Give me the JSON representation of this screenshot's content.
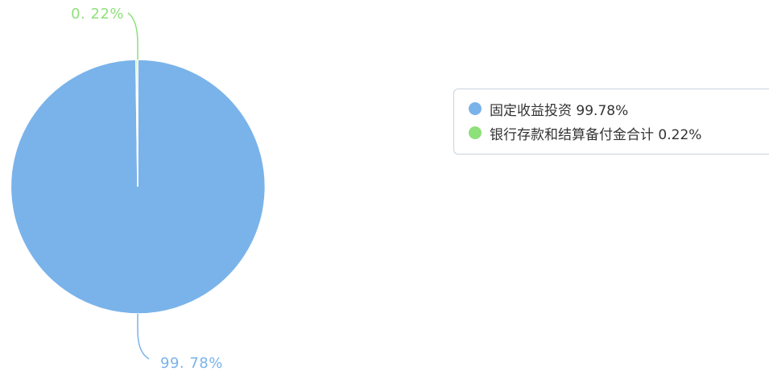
{
  "chart_data": {
    "type": "pie",
    "slices": [
      {
        "name": "固定收益投资",
        "value": 99.78,
        "value_label": "99. 78%",
        "legend": "固定收益投资 99.78%",
        "color": "#7ab3ea"
      },
      {
        "name": "银行存款和结算备付金合计",
        "value": 0.22,
        "value_label": "0. 22%",
        "legend": "银行存款和结算备付金合计 0.22%",
        "color": "#8ee07a"
      }
    ],
    "legend_position": "right",
    "start_angle": "top",
    "direction": "clockwise"
  }
}
